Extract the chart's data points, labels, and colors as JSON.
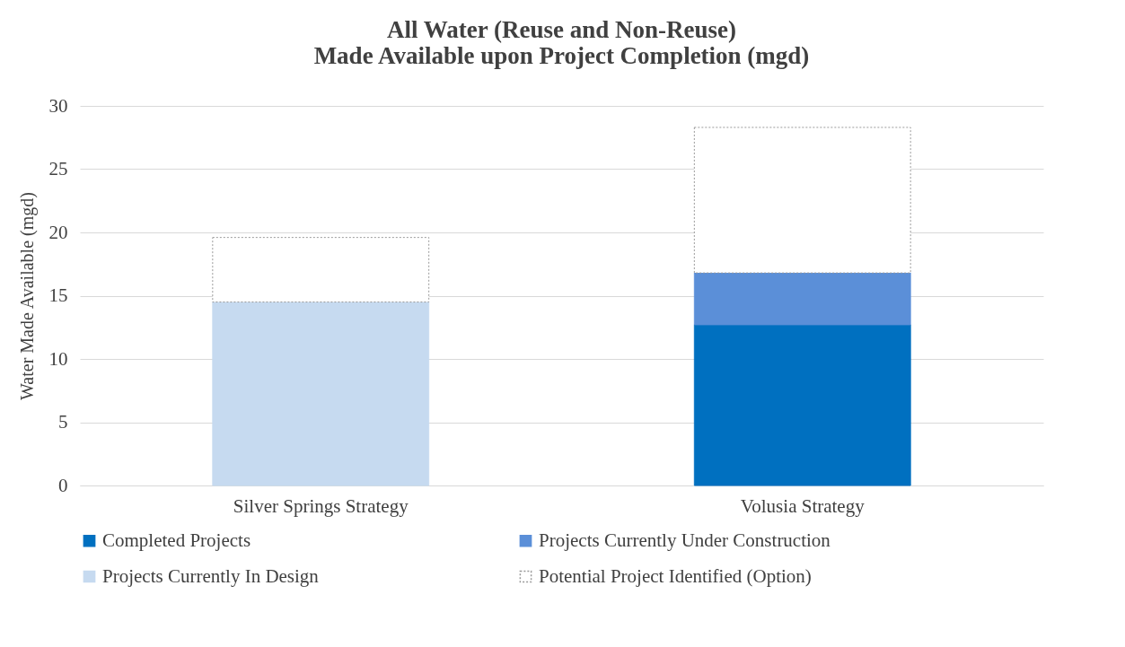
{
  "chart_data": {
    "type": "bar",
    "title": "All Water (Reuse and Non-Reuse)\nMade Available upon Project Completion (mgd)",
    "ylabel": "Water Made Available (mgd)",
    "categories": [
      "Silver Springs Strategy",
      "Volusia Strategy"
    ],
    "stacked": true,
    "ylim": [
      0,
      30
    ],
    "yticks": [
      0,
      5,
      10,
      15,
      20,
      25,
      30
    ],
    "grid": "y",
    "legend": "bottom",
    "series": [
      {
        "name": "Completed Projects",
        "color": "#0070c0",
        "values": [
          null,
          12.7
        ]
      },
      {
        "name": "Projects Currently Under Construction",
        "color": "#5b8fd8",
        "values": [
          null,
          4.1
        ]
      },
      {
        "name": "Projects Currently In Design",
        "color": "#c6daf0",
        "values": [
          14.5,
          null
        ]
      },
      {
        "name": "Potential Project Identified (Option)",
        "color": "#ffffff",
        "values": [
          5.1,
          11.5
        ]
      }
    ]
  }
}
